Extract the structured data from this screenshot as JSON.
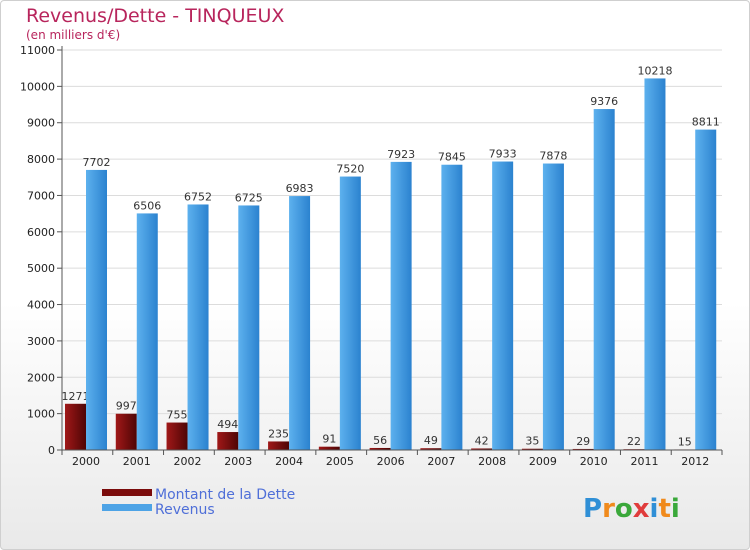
{
  "header": {
    "title": "Revenus/Dette - TINQUEUX",
    "subtitle": "(en milliers d'€)"
  },
  "logo": {
    "text": "Proxiti"
  },
  "colors": {
    "dette": "#7a0b0b",
    "revenus": "#4da3e6",
    "title": "#b8255c",
    "legend_text": "#4f6fd8"
  },
  "chart_data": {
    "type": "bar",
    "title": "Revenus/Dette - TINQUEUX",
    "subtitle": "(en milliers d'€)",
    "categories": [
      "2000",
      "2001",
      "2002",
      "2003",
      "2004",
      "2005",
      "2006",
      "2007",
      "2008",
      "2009",
      "2010",
      "2011",
      "2012"
    ],
    "series": [
      {
        "name": "Montant de la Dette",
        "values": [
          1271,
          997,
          755,
          494,
          235,
          91,
          56,
          49,
          42,
          35,
          29,
          22,
          15
        ]
      },
      {
        "name": "Revenus",
        "values": [
          7702,
          6506,
          6752,
          6725,
          6983,
          7520,
          7923,
          7845,
          7933,
          7878,
          9376,
          10218,
          8811
        ]
      }
    ],
    "value_labels": [
      [
        "1271",
        "997",
        "755",
        "494",
        "235",
        "91",
        "56",
        "49",
        "42",
        "35",
        "29",
        "22",
        "15"
      ],
      [
        "7702",
        "6506",
        "6752",
        "6725",
        "6983",
        "7520",
        "7923",
        "7845",
        "7933",
        "7878",
        "9376",
        "10218",
        "8811"
      ]
    ],
    "yticks": [
      0,
      1000,
      2000,
      3000,
      4000,
      5000,
      6000,
      7000,
      8000,
      9000,
      10000,
      11000
    ],
    "ylim": [
      0,
      11000
    ],
    "grid": true,
    "legend_position": "bottom-left"
  }
}
